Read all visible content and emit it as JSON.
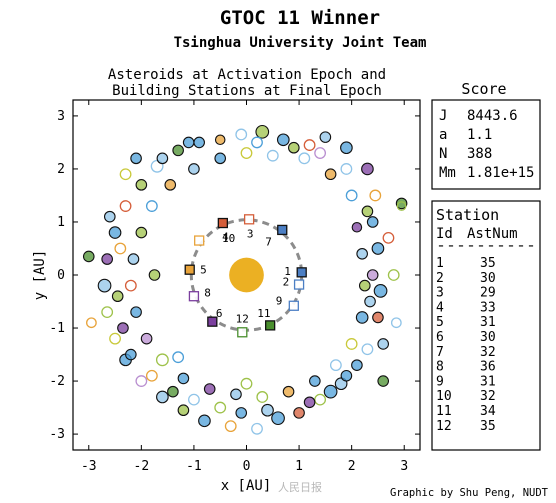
{
  "header": {
    "title": "GTOC 11 Winner",
    "subtitle": "Tsinghua University Joint Team"
  },
  "chart_data": {
    "type": "scatter",
    "title_line1": "Asteroids at Activation Epoch and",
    "title_line2": "Building Stations at Final Epoch",
    "xlabel": "x [AU]",
    "ylabel": "y [AU]",
    "xlim": [
      -3.3,
      3.3
    ],
    "ylim": [
      -3.3,
      3.3
    ],
    "xticks": [
      -3,
      -2,
      -1,
      0,
      1,
      2,
      3
    ],
    "yticks": [
      -3,
      -2,
      -1,
      0,
      1,
      2,
      3
    ],
    "sun": {
      "x": 0,
      "y": 0,
      "r": 0.33,
      "color": "#ebb023"
    },
    "station_ring_radius": 1.05,
    "station_ring_color": "#8c8c8c",
    "stations": [
      {
        "id": "1",
        "x": 1.05,
        "y": 0.05,
        "color": "#4c7fc4",
        "filled": true
      },
      {
        "id": "2",
        "x": 1.0,
        "y": -0.18,
        "color": "#4c7fc4",
        "filled": false
      },
      {
        "id": "3",
        "x": 0.05,
        "y": 1.05,
        "color": "#d55e3a",
        "filled": false
      },
      {
        "id": "4",
        "x": -0.45,
        "y": 0.98,
        "color": "#d55e3a",
        "filled": true
      },
      {
        "id": "5",
        "x": -1.08,
        "y": 0.1,
        "color": "#e8a33a",
        "filled": true
      },
      {
        "id": "6",
        "x": -0.65,
        "y": -0.88,
        "color": "#7b3f9e",
        "filled": true
      },
      {
        "id": "7",
        "x": 0.68,
        "y": 0.85,
        "color": "#4c7fc4",
        "filled": true
      },
      {
        "id": "8",
        "x": -1.0,
        "y": -0.4,
        "color": "#7b3f9e",
        "filled": false
      },
      {
        "id": "9",
        "x": 0.9,
        "y": -0.58,
        "color": "#4c7fc4",
        "filled": false
      },
      {
        "id": "10",
        "x": -0.9,
        "y": 0.65,
        "color": "#e8a33a",
        "filled": false
      },
      {
        "id": "11",
        "x": 0.45,
        "y": -0.95,
        "color": "#4a8f2e",
        "filled": true
      },
      {
        "id": "12",
        "x": -0.08,
        "y": -1.08,
        "color": "#4a8f2e",
        "filled": false
      }
    ],
    "station_labels": [
      {
        "id": "1",
        "x": 0.78,
        "y": 0.08
      },
      {
        "id": "2",
        "x": 0.75,
        "y": -0.12
      },
      {
        "id": "3",
        "x": 0.07,
        "y": 0.78
      },
      {
        "id": "4",
        "x": -0.4,
        "y": 0.73
      },
      {
        "id": "5",
        "x": -0.82,
        "y": 0.1
      },
      {
        "id": "6",
        "x": -0.52,
        "y": -0.72
      },
      {
        "id": "7",
        "x": 0.42,
        "y": 0.63
      },
      {
        "id": "8",
        "x": -0.74,
        "y": -0.33
      },
      {
        "id": "9",
        "x": 0.62,
        "y": -0.48
      },
      {
        "id": "10",
        "x": -0.34,
        "y": 0.7
      },
      {
        "id": "11",
        "x": 0.33,
        "y": -0.72
      },
      {
        "id": "12",
        "x": -0.08,
        "y": -0.82
      }
    ],
    "asteroid_colors": [
      "#4c9fd8",
      "#90c4e8",
      "#9ec24a",
      "#e8a33a",
      "#d55e3a",
      "#7b3f9e",
      "#b98fd0",
      "#4a8f2e",
      "#c9c93a"
    ],
    "asteroids": [
      [
        2.4,
        1.0,
        0,
        1,
        0.1
      ],
      [
        2.45,
        1.5,
        3,
        0,
        0.1
      ],
      [
        2.3,
        2.0,
        5,
        1,
        0.11
      ],
      [
        2.6,
        -1.3,
        1,
        1,
        0.1
      ],
      [
        2.55,
        -0.3,
        0,
        1,
        0.12
      ],
      [
        2.8,
        0.0,
        2,
        0,
        0.1
      ],
      [
        2.85,
        -0.9,
        1,
        0,
        0.09
      ],
      [
        2.7,
        0.7,
        4,
        0,
        0.1
      ],
      [
        1.9,
        2.4,
        0,
        1,
        0.11
      ],
      [
        1.5,
        2.6,
        1,
        1,
        0.1
      ],
      [
        1.2,
        2.45,
        4,
        0,
        0.1
      ],
      [
        0.7,
        2.55,
        0,
        1,
        0.11
      ],
      [
        0.3,
        2.7,
        2,
        1,
        0.12
      ],
      [
        -0.1,
        2.65,
        1,
        0,
        0.1
      ],
      [
        -0.5,
        2.55,
        3,
        1,
        0.09
      ],
      [
        -0.9,
        2.5,
        0,
        1,
        0.1
      ],
      [
        -1.3,
        2.35,
        7,
        1,
        0.1
      ],
      [
        -1.7,
        2.05,
        1,
        0,
        0.11
      ],
      [
        -2.0,
        1.7,
        2,
        1,
        0.1
      ],
      [
        -2.3,
        1.3,
        4,
        0,
        0.1
      ],
      [
        -2.5,
        0.8,
        0,
        1,
        0.11
      ],
      [
        -2.65,
        0.3,
        5,
        1,
        0.1
      ],
      [
        -2.7,
        -0.2,
        1,
        1,
        0.12
      ],
      [
        -2.65,
        -0.7,
        2,
        0,
        0.1
      ],
      [
        -2.5,
        -1.2,
        8,
        0,
        0.1
      ],
      [
        -2.3,
        -1.6,
        0,
        1,
        0.11
      ],
      [
        -2.0,
        -2.0,
        6,
        0,
        0.1
      ],
      [
        -1.6,
        -2.3,
        1,
        1,
        0.11
      ],
      [
        -1.2,
        -2.55,
        2,
        1,
        0.1
      ],
      [
        -0.8,
        -2.75,
        0,
        1,
        0.11
      ],
      [
        -0.3,
        -2.85,
        3,
        0,
        0.1
      ],
      [
        0.2,
        -2.9,
        1,
        0,
        0.1
      ],
      [
        0.6,
        -2.7,
        0,
        1,
        0.12
      ],
      [
        1.0,
        -2.6,
        4,
        1,
        0.1
      ],
      [
        1.4,
        -2.35,
        2,
        0,
        0.1
      ],
      [
        1.8,
        -2.05,
        1,
        1,
        0.11
      ],
      [
        2.1,
        -1.7,
        0,
        1,
        0.1
      ],
      [
        2.6,
        -2.0,
        7,
        1,
        0.1
      ],
      [
        2.95,
        1.35,
        7,
        1,
        0.1
      ],
      [
        2.95,
        1.3,
        2,
        0,
        0.08
      ],
      [
        -3.0,
        0.35,
        7,
        1,
        0.1
      ],
      [
        -2.95,
        -0.9,
        3,
        0,
        0.09
      ],
      [
        -2.1,
        2.2,
        0,
        1,
        0.1
      ],
      [
        1.1,
        2.2,
        1,
        0,
        0.1
      ],
      [
        1.6,
        1.9,
        3,
        1,
        0.1
      ],
      [
        2.0,
        1.5,
        0,
        0,
        0.1
      ],
      [
        2.1,
        0.9,
        5,
        1,
        0.09
      ],
      [
        2.2,
        0.4,
        1,
        1,
        0.1
      ],
      [
        2.25,
        -0.2,
        2,
        1,
        0.1
      ],
      [
        2.2,
        -0.8,
        0,
        1,
        0.11
      ],
      [
        2.0,
        -1.3,
        8,
        0,
        0.1
      ],
      [
        1.7,
        -1.7,
        1,
        0,
        0.1
      ],
      [
        1.3,
        -2.0,
        0,
        1,
        0.1
      ],
      [
        0.8,
        -2.2,
        3,
        1,
        0.1
      ],
      [
        0.3,
        -2.3,
        2,
        0,
        0.1
      ],
      [
        -0.2,
        -2.25,
        1,
        1,
        0.1
      ],
      [
        -0.7,
        -2.15,
        5,
        1,
        0.1
      ],
      [
        -1.2,
        -1.95,
        0,
        1,
        0.1
      ],
      [
        -1.6,
        -1.6,
        2,
        0,
        0.11
      ],
      [
        -1.9,
        -1.2,
        6,
        1,
        0.1
      ],
      [
        -2.1,
        -0.7,
        0,
        1,
        0.1
      ],
      [
        -2.2,
        -0.2,
        4,
        0,
        0.1
      ],
      [
        -2.15,
        0.3,
        1,
        1,
        0.1
      ],
      [
        -2.0,
        0.8,
        2,
        1,
        0.1
      ],
      [
        -1.8,
        1.3,
        0,
        0,
        0.1
      ],
      [
        -1.45,
        1.7,
        3,
        1,
        0.1
      ],
      [
        -1.0,
        2.0,
        1,
        1,
        0.1
      ],
      [
        -0.5,
        2.2,
        0,
        1,
        0.1
      ],
      [
        0.0,
        2.3,
        8,
        0,
        0.1
      ],
      [
        0.5,
        2.25,
        1,
        0,
        0.1
      ],
      [
        2.4,
        0.0,
        6,
        1,
        0.1
      ],
      [
        -2.35,
        -1.0,
        5,
        1,
        0.1
      ],
      [
        -1.4,
        -2.2,
        7,
        1,
        0.1
      ],
      [
        1.6,
        -2.2,
        0,
        1,
        0.12
      ],
      [
        0.4,
        -2.55,
        1,
        1,
        0.11
      ],
      [
        -0.5,
        -2.5,
        2,
        0,
        0.1
      ],
      [
        -1.8,
        -1.9,
        3,
        0,
        0.1
      ],
      [
        -2.6,
        1.1,
        1,
        1,
        0.1
      ],
      [
        -2.3,
        1.9,
        8,
        0,
        0.1
      ],
      [
        -1.1,
        2.5,
        0,
        1,
        0.1
      ],
      [
        0.9,
        2.4,
        2,
        1,
        0.1
      ],
      [
        1.9,
        2.0,
        1,
        0,
        0.1
      ],
      [
        2.5,
        0.5,
        0,
        1,
        0.11
      ],
      [
        2.5,
        -0.8,
        4,
        1,
        0.1
      ],
      [
        2.3,
        -1.4,
        1,
        0,
        0.1
      ],
      [
        1.2,
        -2.4,
        5,
        1,
        0.1
      ],
      [
        -0.1,
        -2.6,
        0,
        1,
        0.1
      ],
      [
        -1.0,
        -2.35,
        1,
        0,
        0.1
      ],
      [
        -2.2,
        -1.5,
        0,
        1,
        0.1
      ],
      [
        -2.45,
        -0.4,
        2,
        1,
        0.1
      ],
      [
        -2.4,
        0.5,
        3,
        0,
        0.1
      ],
      [
        -1.6,
        2.2,
        1,
        1,
        0.1
      ],
      [
        0.2,
        2.5,
        0,
        0,
        0.1
      ],
      [
        1.4,
        2.3,
        6,
        0,
        0.1
      ],
      [
        2.3,
        1.2,
        2,
        1,
        0.1
      ],
      [
        2.35,
        -0.5,
        1,
        1,
        0.1
      ],
      [
        1.9,
        -1.9,
        0,
        1,
        0.1
      ],
      [
        0.0,
        -2.05,
        2,
        0,
        0.1
      ],
      [
        -1.3,
        -1.55,
        0,
        0,
        0.1
      ],
      [
        -1.75,
        0.0,
        2,
        1,
        0.1
      ]
    ]
  },
  "score": {
    "title": "Score",
    "rows": [
      {
        "key": "J",
        "value": "8443.6"
      },
      {
        "key": "a",
        "value": "1.1"
      },
      {
        "key": "N",
        "value": "388"
      },
      {
        "key": "Mm",
        "value": "1.81e+15"
      }
    ]
  },
  "station_table": {
    "title": "Station",
    "col_id": "Id",
    "col_num": "AstNum",
    "divider": "----------",
    "rows": [
      {
        "id": "1",
        "num": "35"
      },
      {
        "id": "2",
        "num": "30"
      },
      {
        "id": "3",
        "num": "29"
      },
      {
        "id": "4",
        "num": "33"
      },
      {
        "id": "5",
        "num": "31"
      },
      {
        "id": "6",
        "num": "30"
      },
      {
        "id": "7",
        "num": "32"
      },
      {
        "id": "8",
        "num": "36"
      },
      {
        "id": "9",
        "num": "31"
      },
      {
        "id": "10",
        "num": "32"
      },
      {
        "id": "11",
        "num": "34"
      },
      {
        "id": "12",
        "num": "35"
      }
    ]
  },
  "footer": {
    "credit": "Graphic by Shu Peng, NUDT",
    "watermark": "人民日报"
  }
}
